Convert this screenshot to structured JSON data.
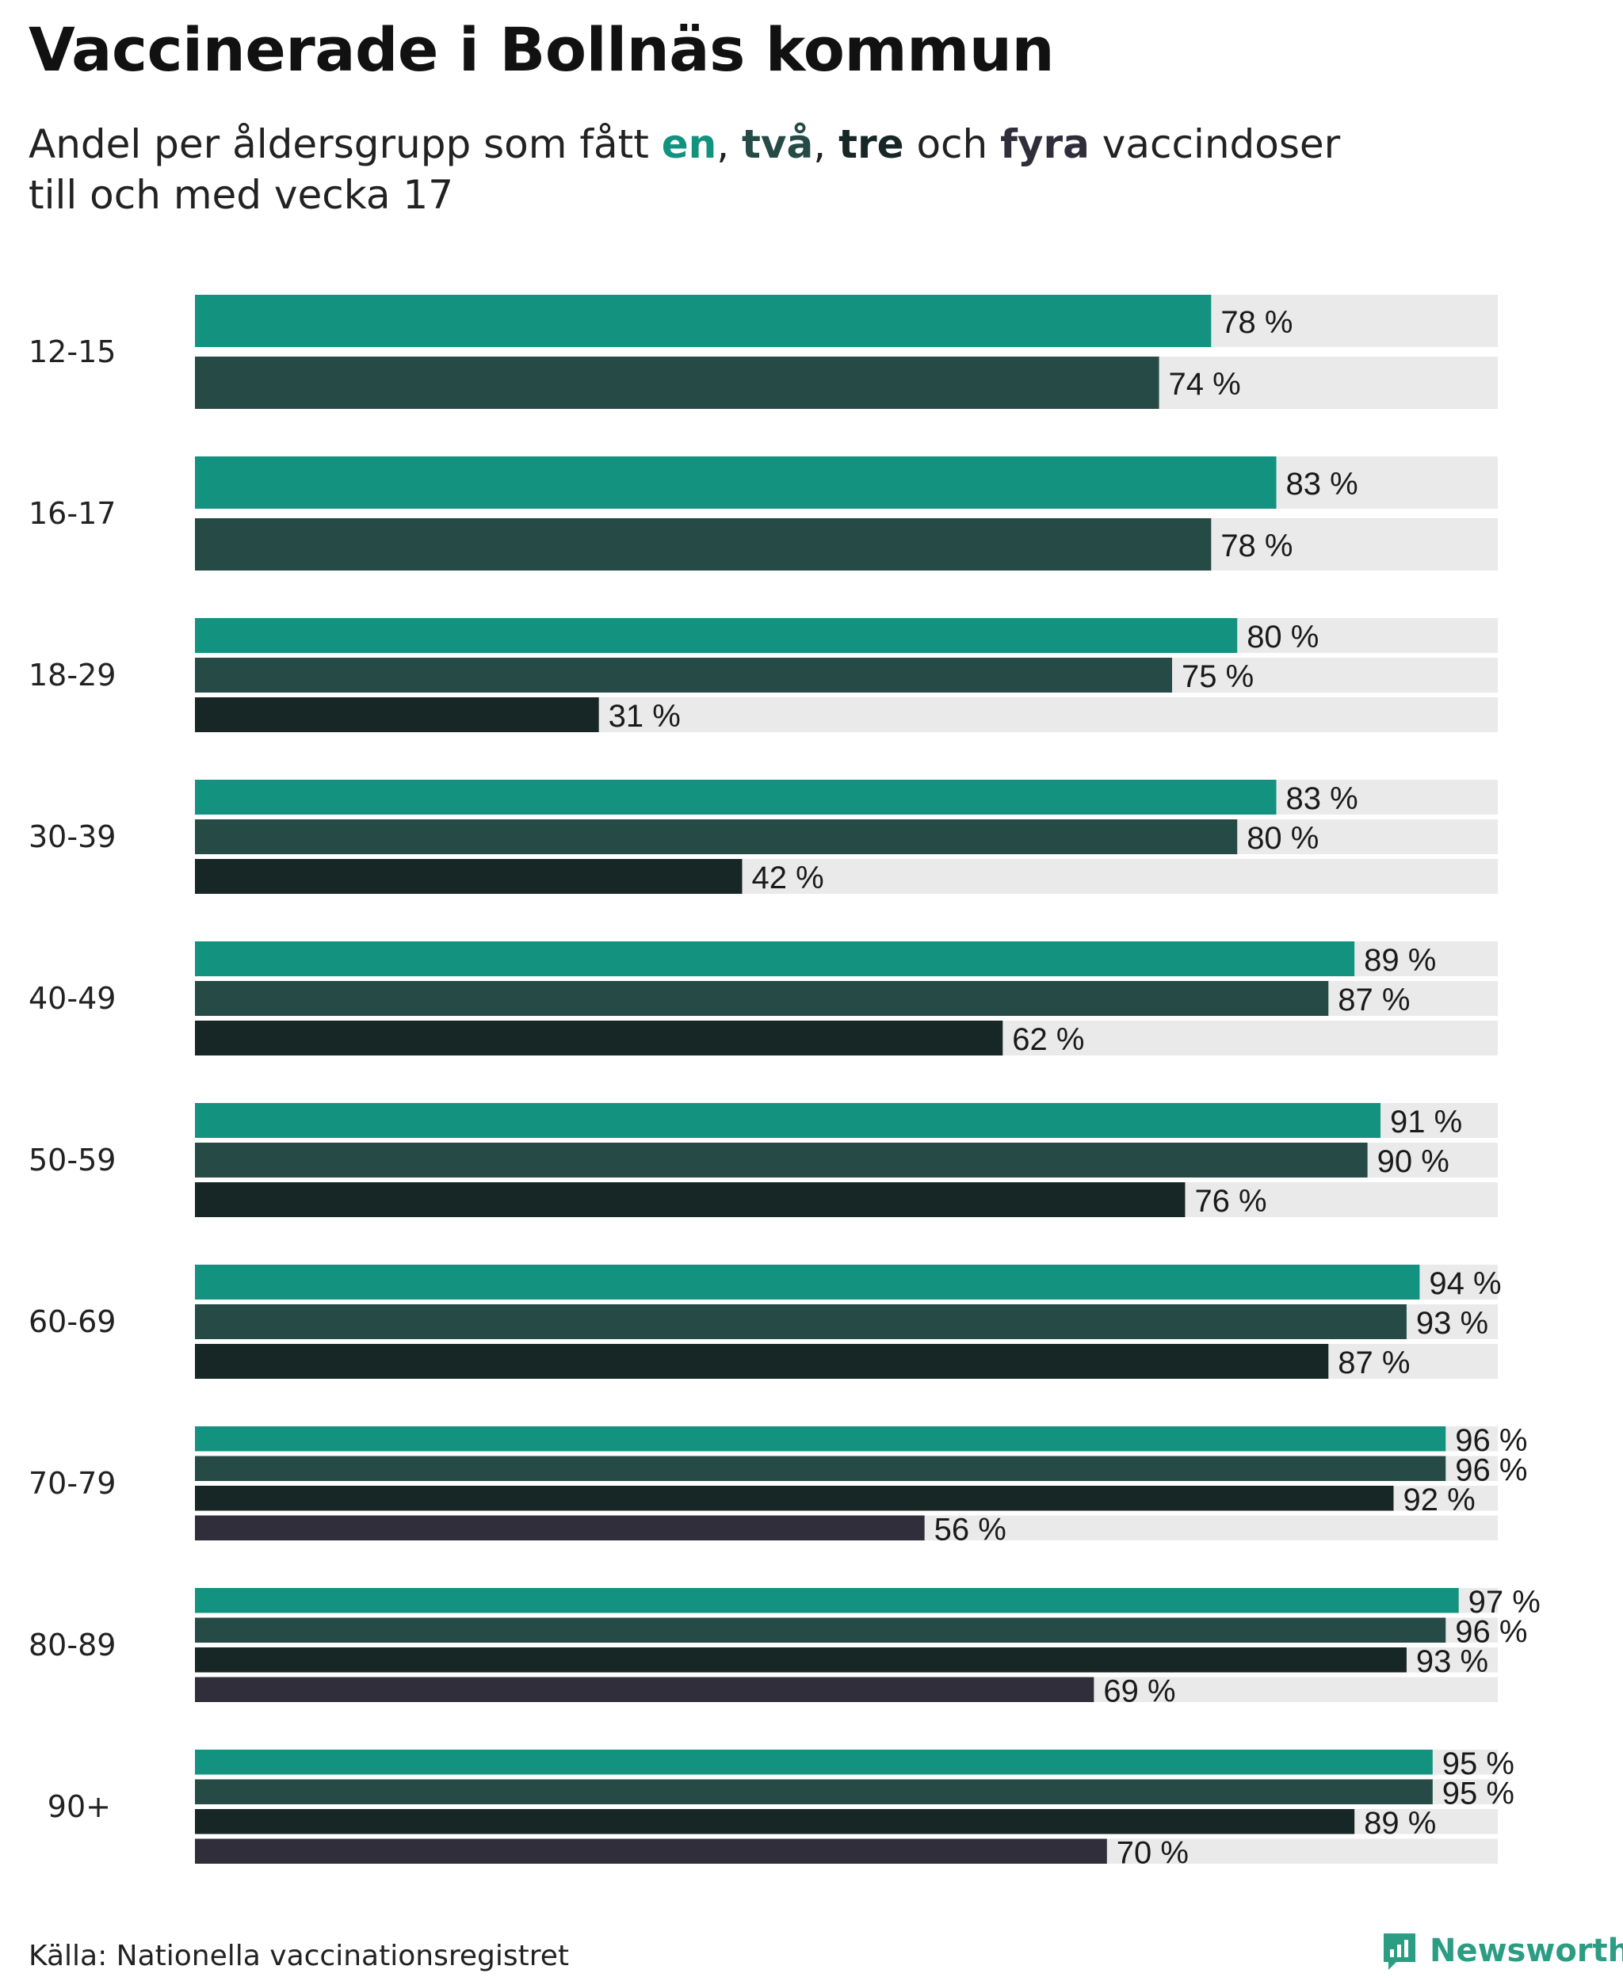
{
  "title": "Vaccinerade i Bollnäs kommun",
  "subtitle": {
    "prefix": "Andel per åldersgrupp som fått ",
    "dose1": "en",
    "sep1": ", ",
    "dose2": "två",
    "sep2": ", ",
    "dose3": "tre",
    "sep3": " och ",
    "dose4": "fyra",
    "suffix": " vaccindoser",
    "line2": "till och med vecka 17"
  },
  "source": "Källa: Nationella vaccinationsregistret",
  "logo_text": "Newsworthy",
  "logo_icon": "newsworthy-logo-icon",
  "colors": {
    "dose1": "#13937f",
    "dose2": "#264b47",
    "dose3": "#172726",
    "dose4": "#302e3b",
    "track": "#eaeaea",
    "logo": "#2a9d82"
  },
  "chart_data": {
    "type": "bar",
    "orientation": "horizontal",
    "xlim": [
      0,
      100
    ],
    "unit": "%",
    "categories": [
      "12-15",
      "16-17",
      "18-29",
      "30-39",
      "40-49",
      "50-59",
      "60-69",
      "70-79",
      "80-89",
      "90+"
    ],
    "series": [
      {
        "name": "en",
        "values": [
          78,
          83,
          80,
          83,
          89,
          91,
          94,
          96,
          97,
          95
        ]
      },
      {
        "name": "två",
        "values": [
          74,
          78,
          75,
          80,
          87,
          90,
          93,
          96,
          96,
          95
        ]
      },
      {
        "name": "tre",
        "values": [
          null,
          null,
          31,
          42,
          62,
          76,
          87,
          92,
          93,
          89
        ]
      },
      {
        "name": "fyra",
        "values": [
          null,
          null,
          null,
          null,
          null,
          null,
          null,
          56,
          69,
          70
        ]
      }
    ],
    "value_labels": [
      [
        "78 %",
        "74 %"
      ],
      [
        "83 %",
        "78 %"
      ],
      [
        "80 %",
        "75 %",
        "31 %"
      ],
      [
        "83 %",
        "80 %",
        "42 %"
      ],
      [
        "89 %",
        "87 %",
        "62 %"
      ],
      [
        "91 %",
        "90 %",
        "76 %"
      ],
      [
        "94 %",
        "93 %",
        "87 %"
      ],
      [
        "96 %",
        "96 %",
        "92 %",
        "56 %"
      ],
      [
        "97 %",
        "96 %",
        "93 %",
        "69 %"
      ],
      [
        "95 %",
        "95 %",
        "89 %",
        "70 %"
      ]
    ]
  }
}
